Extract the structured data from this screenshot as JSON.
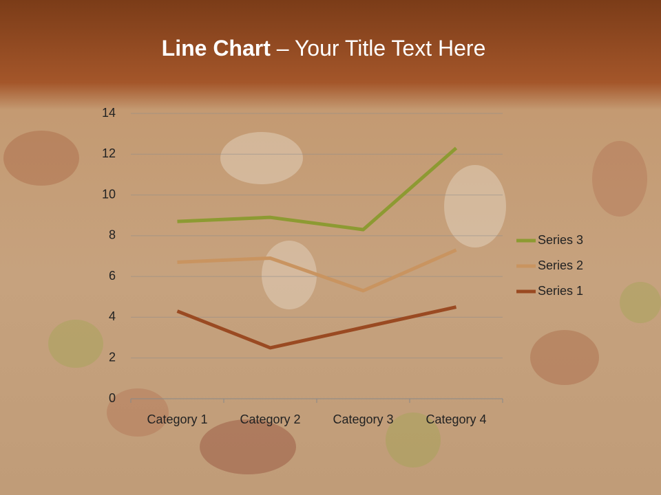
{
  "chart_data": {
    "type": "line",
    "stacked": true,
    "title_parts": [
      "Line Chart",
      "– Your Title Text Here"
    ],
    "categories": [
      "Category 1",
      "Category 2",
      "Category 3",
      "Category 4"
    ],
    "series": [
      {
        "name": "Series 1",
        "color": "#9a4a22",
        "values": [
          4.3,
          2.5,
          3.5,
          4.5
        ]
      },
      {
        "name": "Series 2",
        "color": "#c99460",
        "values": [
          2.4,
          4.4,
          1.8,
          2.8
        ]
      },
      {
        "name": "Series 3",
        "color": "#8d9a32",
        "values": [
          2,
          2,
          3,
          5
        ]
      }
    ],
    "ylim": [
      0,
      14
    ],
    "yticks": [
      0,
      2,
      4,
      6,
      8,
      10,
      12,
      14
    ],
    "grid": true,
    "legend": "right"
  }
}
